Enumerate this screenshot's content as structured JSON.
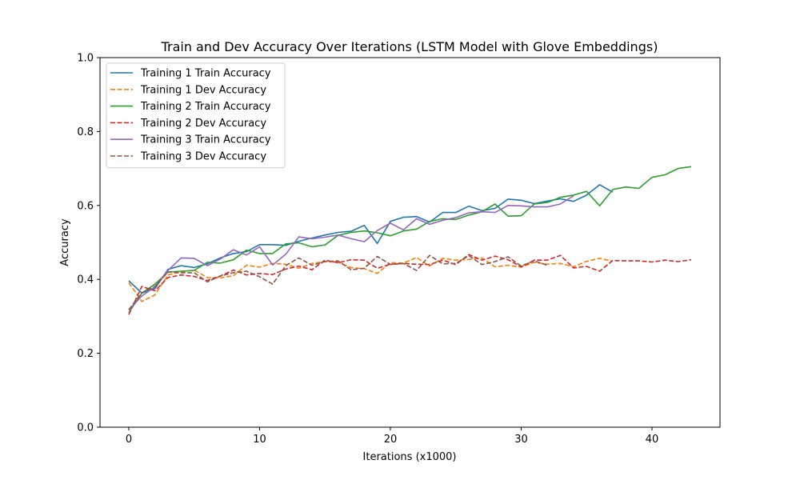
{
  "chart_data": {
    "type": "line",
    "title": "Train and Dev Accuracy Over Iterations (LSTM Model with Glove Embeddings)",
    "xlabel": "Iterations (x1000)",
    "ylabel": "Accuracy",
    "xlim": [
      -2.2,
      45.2
    ],
    "ylim": [
      0.0,
      1.0
    ],
    "xticks": [
      0,
      10,
      20,
      30,
      40
    ],
    "yticks": [
      0.0,
      0.2,
      0.4,
      0.6,
      0.8,
      1.0
    ],
    "xtick_labels": [
      "0",
      "10",
      "20",
      "30",
      "40"
    ],
    "ytick_labels": [
      "0.0",
      "0.2",
      "0.4",
      "0.6",
      "0.8",
      "1.0"
    ],
    "grid": false,
    "legend_position": "top-left",
    "series": [
      {
        "name": "Training 1 Train Accuracy",
        "color": "#1f77b4",
        "dash": "solid",
        "values": [
          0.396,
          0.363,
          0.375,
          0.427,
          0.437,
          0.432,
          0.442,
          0.458,
          0.47,
          0.475,
          0.494,
          0.494,
          0.492,
          0.503,
          0.512,
          0.52,
          0.527,
          0.53,
          0.546,
          0.497,
          0.557,
          0.568,
          0.57,
          0.555,
          0.581,
          0.581,
          0.598,
          0.586,
          0.592,
          0.617,
          0.614,
          0.605,
          0.612,
          0.618,
          0.611,
          0.628,
          0.656,
          0.636
        ]
      },
      {
        "name": "Training 1 Dev Accuracy",
        "color": "#ff7f0e",
        "dash": "dashed",
        "values": [
          0.391,
          0.34,
          0.358,
          0.412,
          0.42,
          0.425,
          0.405,
          0.404,
          0.41,
          0.438,
          0.433,
          0.443,
          0.441,
          0.43,
          0.443,
          0.448,
          0.446,
          0.432,
          0.429,
          0.416,
          0.445,
          0.444,
          0.459,
          0.436,
          0.457,
          0.452,
          0.454,
          0.458,
          0.434,
          0.438,
          0.433,
          0.446,
          0.441,
          0.443,
          0.434,
          0.449,
          0.457,
          0.449
        ]
      },
      {
        "name": "Training 2 Train Accuracy",
        "color": "#2ca02c",
        "dash": "solid",
        "values": [
          0.31,
          0.363,
          0.387,
          0.42,
          0.422,
          0.424,
          0.446,
          0.444,
          0.453,
          0.479,
          0.47,
          0.47,
          0.496,
          0.499,
          0.488,
          0.493,
          0.519,
          0.527,
          0.531,
          0.526,
          0.518,
          0.531,
          0.536,
          0.557,
          0.564,
          0.562,
          0.574,
          0.583,
          0.604,
          0.571,
          0.572,
          0.604,
          0.608,
          0.622,
          0.628,
          0.638,
          0.599,
          0.643,
          0.65,
          0.646,
          0.676,
          0.683,
          0.7,
          0.705
        ]
      },
      {
        "name": "Training 2 Dev Accuracy",
        "color": "#d62728",
        "dash": "dashed",
        "values": [
          0.305,
          0.381,
          0.369,
          0.405,
          0.412,
          0.408,
          0.397,
          0.409,
          0.425,
          0.412,
          0.416,
          0.413,
          0.428,
          0.436,
          0.426,
          0.452,
          0.445,
          0.453,
          0.452,
          0.43,
          0.441,
          0.443,
          0.441,
          0.44,
          0.452,
          0.44,
          0.467,
          0.452,
          0.463,
          0.453,
          0.434,
          0.452,
          0.452,
          0.465,
          0.431,
          0.435,
          0.422,
          0.451,
          0.45,
          0.45,
          0.447,
          0.452,
          0.448,
          0.453
        ]
      },
      {
        "name": "Training 3 Train Accuracy",
        "color": "#9467bd",
        "dash": "solid",
        "values": [
          0.317,
          0.355,
          0.38,
          0.424,
          0.458,
          0.457,
          0.437,
          0.455,
          0.48,
          0.466,
          0.488,
          0.439,
          0.468,
          0.515,
          0.51,
          0.514,
          0.52,
          0.51,
          0.502,
          0.532,
          0.552,
          0.534,
          0.564,
          0.549,
          0.56,
          0.567,
          0.58,
          0.583,
          0.581,
          0.6,
          0.599,
          0.596,
          0.596,
          0.604,
          0.626
        ]
      },
      {
        "name": "Training 3 Dev Accuracy",
        "color": "#8c564b",
        "dash": "dashed",
        "values": [
          0.318,
          0.364,
          0.381,
          0.42,
          0.418,
          0.418,
          0.393,
          0.409,
          0.418,
          0.422,
          0.407,
          0.387,
          0.437,
          0.458,
          0.438,
          0.448,
          0.45,
          0.426,
          0.43,
          0.462,
          0.44,
          0.443,
          0.424,
          0.465,
          0.442,
          0.443,
          0.464,
          0.44,
          0.448,
          0.461,
          0.436,
          0.45,
          0.438
        ]
      }
    ]
  }
}
